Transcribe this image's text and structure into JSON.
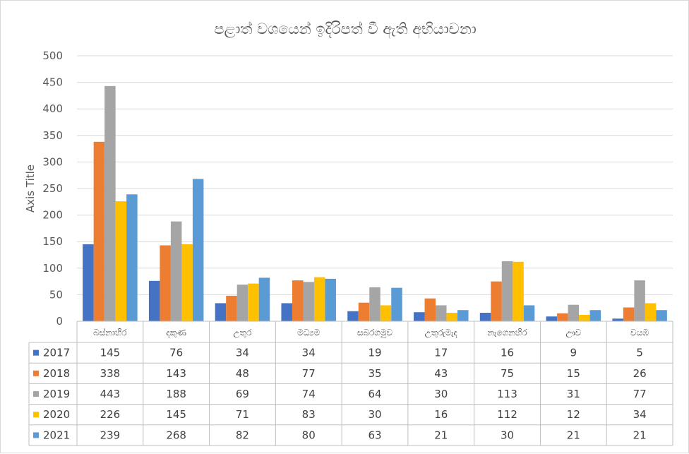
{
  "chart_data": {
    "type": "bar",
    "title": "පළාත් වශයෙන් ඉදිරිපත් වී ඇති අභියාචනා",
    "ylabel": "Axis Title",
    "xlabel": "",
    "ylim": [
      0,
      500
    ],
    "yticks": [
      0,
      50,
      100,
      150,
      200,
      250,
      300,
      350,
      400,
      450,
      500
    ],
    "grid": true,
    "legend": "data-table",
    "categories": [
      "බස්නාහිර",
      "දකුණ",
      "උතුර",
      "මධ්‍යම",
      "සබරගමුව",
      "උතුරුමැද",
      "නැගෙනහිර",
      "ඌව",
      "වයඹ"
    ],
    "series": [
      {
        "name": "2017",
        "color": "#4472c4",
        "values": [
          145,
          76,
          34,
          34,
          19,
          17,
          16,
          9,
          5
        ]
      },
      {
        "name": "2018",
        "color": "#ed7d31",
        "values": [
          338,
          143,
          48,
          77,
          35,
          43,
          75,
          15,
          26
        ]
      },
      {
        "name": "2019",
        "color": "#a5a5a5",
        "values": [
          443,
          188,
          69,
          74,
          64,
          30,
          113,
          31,
          77
        ]
      },
      {
        "name": "2020",
        "color": "#ffc000",
        "values": [
          226,
          145,
          71,
          83,
          30,
          16,
          112,
          12,
          34
        ]
      },
      {
        "name": "2021",
        "color": "#5b9bd5",
        "values": [
          239,
          268,
          82,
          80,
          63,
          21,
          30,
          21,
          21
        ]
      }
    ]
  }
}
